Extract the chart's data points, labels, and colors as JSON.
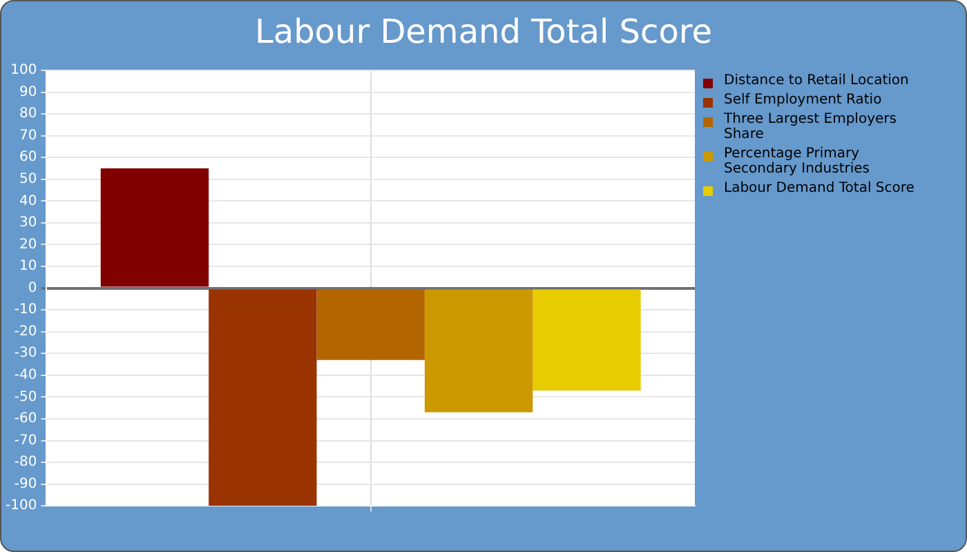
{
  "chart_data": {
    "type": "bar",
    "title": "Labour Demand Total Score",
    "categories": [
      null
    ],
    "series": [
      {
        "name": "Distance to Retail Location",
        "color": "#800000",
        "values": [
          55
        ]
      },
      {
        "name": "Self Employment Ratio",
        "color": "#993300",
        "values": [
          -100
        ]
      },
      {
        "name": "Three Largest Employers Share",
        "color": "#b36600",
        "values": [
          -33
        ]
      },
      {
        "name": "Percentage Primary Secondary Industries",
        "color": "#cc9900",
        "values": [
          -57
        ]
      },
      {
        "name": "Labour Demand Total Score",
        "color": "#e6cc00",
        "values": [
          -47
        ]
      }
    ],
    "ylim": [
      -100,
      100
    ],
    "yticks": [
      -100,
      -90,
      -80,
      -70,
      -60,
      -50,
      -40,
      -30,
      -20,
      -10,
      0,
      10,
      20,
      30,
      40,
      50,
      60,
      70,
      80,
      90,
      100
    ],
    "grid": true,
    "legend": "right"
  }
}
